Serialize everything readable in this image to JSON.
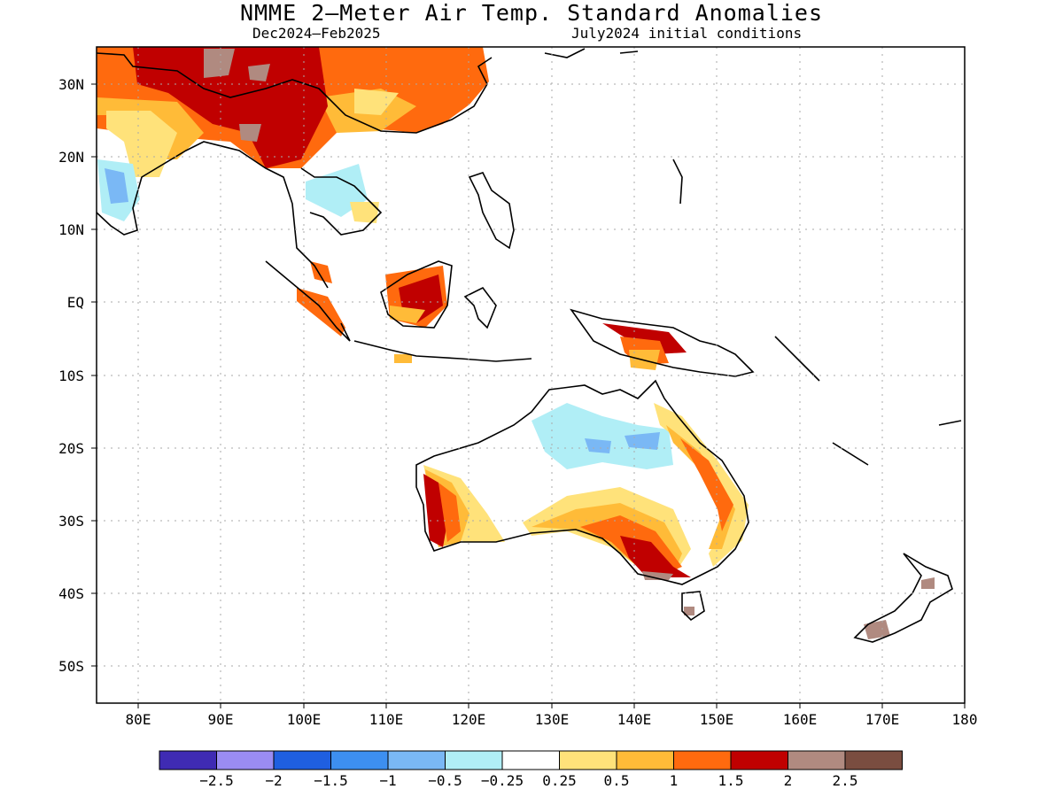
{
  "title": "NMME 2—Meter Air Temp. Standard Anomalies",
  "season": "Dec2024—Feb2025",
  "init": "July2024 initial conditions",
  "lat_labels": [
    "30N",
    "20N",
    "10N",
    "EQ",
    "10S",
    "20S",
    "30S",
    "40S",
    "50S"
  ],
  "lon_labels": [
    "80E",
    "90E",
    "100E",
    "110E",
    "120E",
    "130E",
    "140E",
    "150E",
    "160E",
    "170E",
    "180"
  ],
  "map_extent": {
    "lon": [
      75,
      180
    ],
    "lat": [
      -55,
      35
    ]
  },
  "colorbar": {
    "colors": [
      "#3f2bb3",
      "#9a8cf2",
      "#1f5fe0",
      "#3d8ff0",
      "#7ab8f5",
      "#b0eef6",
      "#ffffff",
      "#ffe27a",
      "#ffbb38",
      "#ff6a0e",
      "#c00000",
      "#b08a80",
      "#7a4d40"
    ],
    "labels": [
      "−2.5",
      "−2",
      "−1.5",
      "−1",
      "−0.5",
      "−0.25",
      "0.25",
      "0.5",
      "1",
      "1.5",
      "2",
      "2.5"
    ]
  },
  "anomaly_legend_note": "",
  "colors": {
    "weak_warm": "#ffe27a",
    "mod_warm": "#ffbb38",
    "warm": "#ff6a0e",
    "strong_warm": "#c00000",
    "very_strong": "#b08a80",
    "weak_cool": "#b0eef6",
    "mod_cool": "#7ab8f5"
  }
}
